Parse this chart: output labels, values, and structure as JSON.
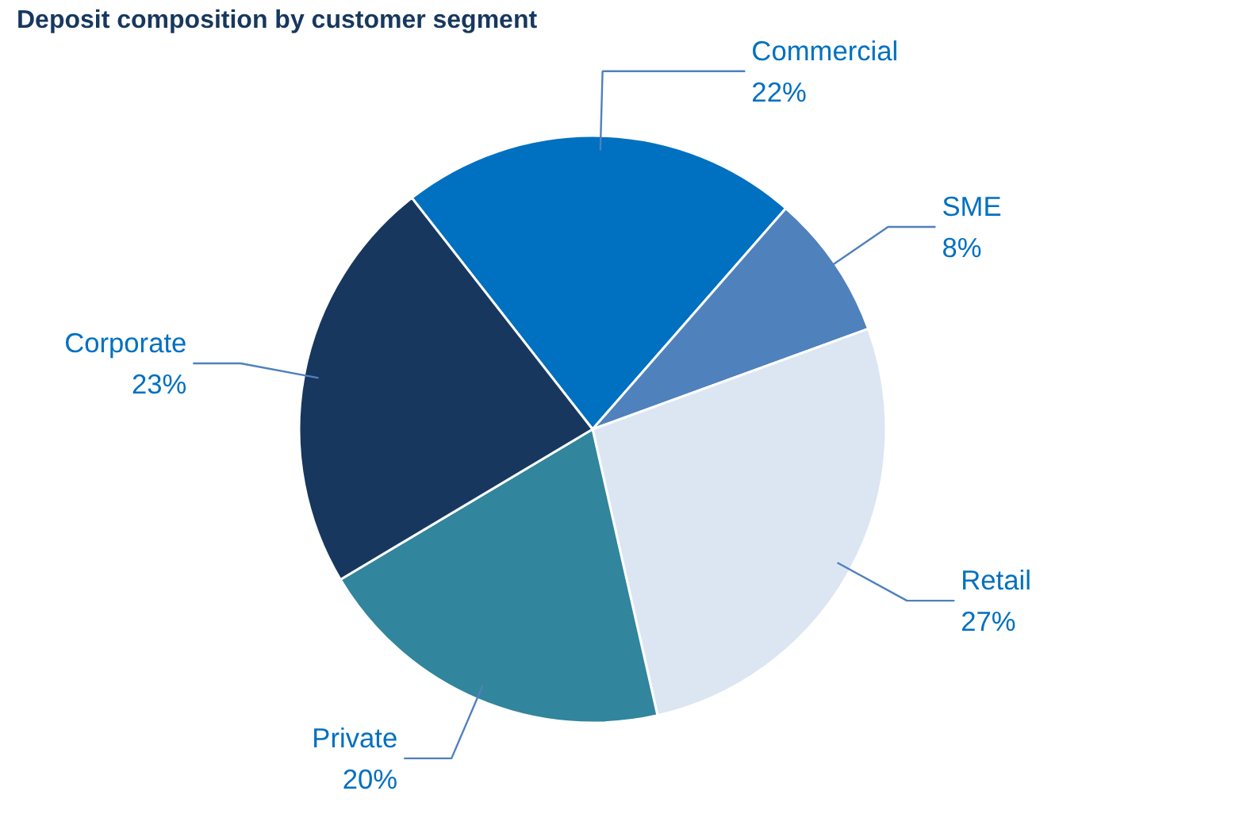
{
  "chart_data": {
    "type": "pie",
    "title": "Deposit composition by customer segment",
    "categories": [
      "Commercial",
      "SME",
      "Retail",
      "Private",
      "Corporate"
    ],
    "values": [
      22,
      8,
      27,
      20,
      23
    ],
    "colors": [
      "#0070c0",
      "#4f81bd",
      "#dce6f2",
      "#31859c",
      "#17375e"
    ],
    "value_labels": [
      "22%",
      "8%",
      "27%",
      "20%",
      "23%"
    ]
  }
}
